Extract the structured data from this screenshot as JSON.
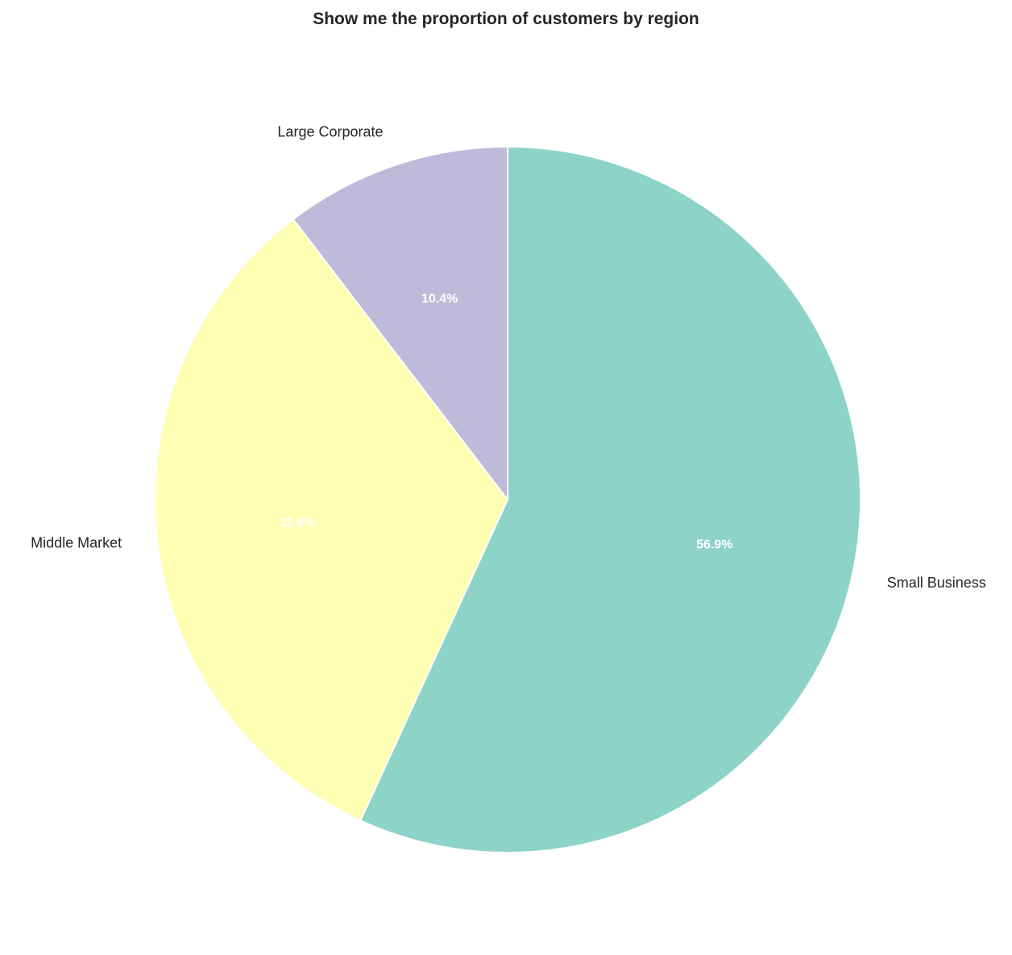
{
  "chart_data": {
    "type": "pie",
    "title": "Show me the proportion of customers by region",
    "slices": [
      {
        "label": "Small Business",
        "value": 56.9,
        "pct_label": "56.9%",
        "color": "#8dd3c7"
      },
      {
        "label": "Middle Market",
        "value": 32.8,
        "pct_label": "32.8%",
        "color": "#ffffb3"
      },
      {
        "label": "Large Corporate",
        "value": 10.4,
        "pct_label": "10.4%",
        "color": "#bebada"
      }
    ],
    "start_angle_deg": 90,
    "direction": "clockwise"
  }
}
